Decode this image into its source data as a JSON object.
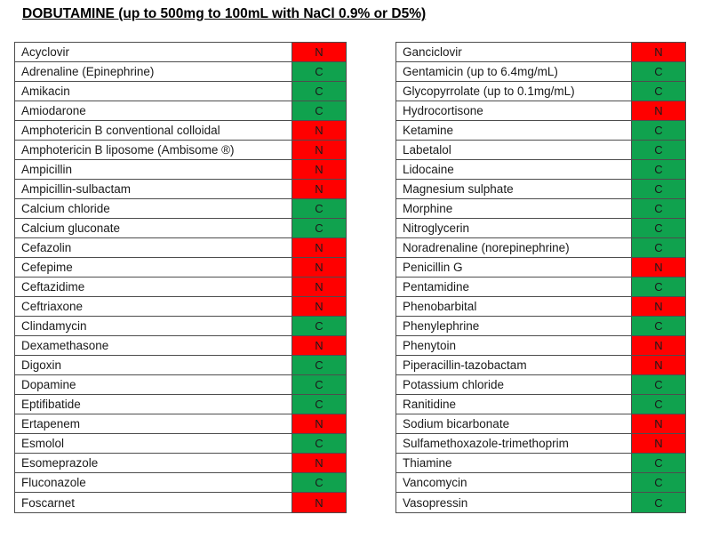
{
  "title": "DOBUTAMINE (up to 500mg to 100mL with NaCl 0.9% or D5%)",
  "legend": {
    "compatible_code": "C",
    "incompatible_code": "N"
  },
  "colors": {
    "compatible_green": "#10A24E",
    "incompatible_red": "#FF0000",
    "border": "#4D4D4D",
    "text": "#1A1A1A"
  },
  "tables": {
    "left": {
      "rows": [
        {
          "drug": "Acyclovir",
          "code": "N"
        },
        {
          "drug": "Adrenaline (Epinephrine)",
          "code": "C"
        },
        {
          "drug": "Amikacin",
          "code": "C"
        },
        {
          "drug": "Amiodarone",
          "code": "C"
        },
        {
          "drug": "Amphotericin B conventional colloidal",
          "code": "N"
        },
        {
          "drug": "Amphotericin B  liposome (Ambisome ®)",
          "code": "N"
        },
        {
          "drug": "Ampicillin",
          "code": "N"
        },
        {
          "drug": "Ampicillin-sulbactam",
          "code": "N"
        },
        {
          "drug": "Calcium chloride",
          "code": "C"
        },
        {
          "drug": "Calcium gluconate",
          "code": "C"
        },
        {
          "drug": "Cefazolin",
          "code": "N"
        },
        {
          "drug": "Cefepime",
          "code": "N"
        },
        {
          "drug": "Ceftazidime",
          "code": "N"
        },
        {
          "drug": "Ceftriaxone",
          "code": "N"
        },
        {
          "drug": "Clindamycin",
          "code": "C"
        },
        {
          "drug": "Dexamethasone",
          "code": "N"
        },
        {
          "drug": "Digoxin",
          "code": "C"
        },
        {
          "drug": "Dopamine",
          "code": "C"
        },
        {
          "drug": "Eptifibatide",
          "code": "C"
        },
        {
          "drug": "Ertapenem",
          "code": "N"
        },
        {
          "drug": "Esmolol",
          "code": "C"
        },
        {
          "drug": "Esomeprazole",
          "code": "N"
        },
        {
          "drug": "Fluconazole",
          "code": "C"
        },
        {
          "drug": "Foscarnet",
          "code": "N"
        }
      ]
    },
    "right": {
      "rows": [
        {
          "drug": "Ganciclovir",
          "code": "N"
        },
        {
          "drug": "Gentamicin (up to 6.4mg/mL)",
          "code": "C"
        },
        {
          "drug": "Glycopyrrolate (up to 0.1mg/mL)",
          "code": "C"
        },
        {
          "drug": "Hydrocortisone",
          "code": "N"
        },
        {
          "drug": "Ketamine",
          "code": "C"
        },
        {
          "drug": "Labetalol",
          "code": "C"
        },
        {
          "drug": "Lidocaine",
          "code": "C"
        },
        {
          "drug": "Magnesium sulphate",
          "code": "C"
        },
        {
          "drug": "Morphine",
          "code": "C"
        },
        {
          "drug": "Nitroglycerin",
          "code": "C"
        },
        {
          "drug": "Noradrenaline (norepinephrine)",
          "code": "C"
        },
        {
          "drug": "Penicillin G",
          "code": "N"
        },
        {
          "drug": "Pentamidine",
          "code": "C"
        },
        {
          "drug": "Phenobarbital",
          "code": "N"
        },
        {
          "drug": "Phenylephrine",
          "code": "C"
        },
        {
          "drug": "Phenytoin",
          "code": "N"
        },
        {
          "drug": "Piperacillin-tazobactam",
          "code": "N"
        },
        {
          "drug": "Potassium chloride",
          "code": "C"
        },
        {
          "drug": "Ranitidine",
          "code": "C"
        },
        {
          "drug": "Sodium bicarbonate",
          "code": "N"
        },
        {
          "drug": "Sulfamethoxazole-trimethoprim",
          "code": "N"
        },
        {
          "drug": "Thiamine",
          "code": "C"
        },
        {
          "drug": "Vancomycin",
          "code": "C"
        },
        {
          "drug": "Vasopressin",
          "code": "C"
        }
      ]
    }
  }
}
